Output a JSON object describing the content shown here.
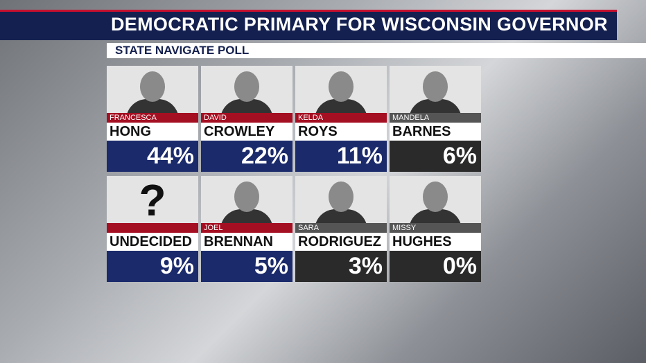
{
  "header": {
    "title": "DEMOCRATIC PRIMARY FOR WISCONSIN GOVERNOR",
    "subtitle": "STATE NAVIGATE POLL"
  },
  "cards": [
    {
      "first": "FRANCESCA",
      "last": "HONG",
      "result": "44%",
      "color": "#1b2a6b"
    },
    {
      "first": "DAVID",
      "last": "CROWLEY",
      "result": "22%",
      "color": "#1b2a6b"
    },
    {
      "first": "KELDA",
      "last": "ROYS",
      "result": "11%",
      "color": "#1b2a6b"
    },
    {
      "first": "MANDELA",
      "last": "BARNES",
      "result": "6%",
      "color": "#2a2a2a"
    },
    {
      "icon": "?",
      "last": "UNDECIDED",
      "result": "9%",
      "color": "#1b2a6b"
    },
    {
      "first": "JOEL",
      "last": "BRENNAN",
      "result": "5%",
      "color": "#1b2a6b"
    },
    {
      "first": "SARA",
      "last": "RODRIGUEZ",
      "result": "3%",
      "color": "#2a2a2a"
    },
    {
      "first": "MISSY",
      "last": "HUGHES",
      "result": "0%",
      "color": "#2a2a2a"
    }
  ]
}
